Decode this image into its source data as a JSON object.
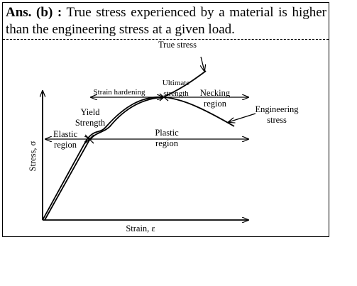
{
  "answer": {
    "label": "Ans. (b) :",
    "text": "True stress experienced by a material is higher than the engineering stress at a given load."
  },
  "diagram": {
    "true_stress": [
      "True stress"
    ],
    "ultimate": [
      "Ultimate",
      "strength"
    ],
    "strain_hardening": [
      "Strain hardening"
    ],
    "necking": [
      "Necking",
      "region"
    ],
    "engineering": [
      "Engineering",
      "stress"
    ],
    "yield": [
      "Yield",
      "Strength"
    ],
    "elastic": [
      "Elastic",
      "region"
    ],
    "plastic": [
      "Plastic",
      "region"
    ],
    "y_axis": [
      "Stress, σ"
    ],
    "x_axis": [
      "Strain, ε"
    ]
  }
}
